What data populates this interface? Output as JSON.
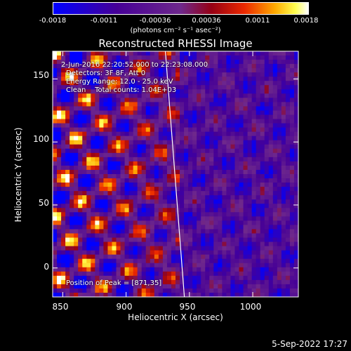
{
  "colorbar": {
    "ticks": [
      "-0.0018",
      "-0.0011",
      "-0.00036",
      "0.00036",
      "0.0011",
      "0.0018"
    ],
    "units": "(photons cm⁻² s⁻¹ asec⁻²)"
  },
  "stamp": "5-Sep-2022 17:27",
  "annotations": {
    "line1": "2-Jun-2016 22:20:52.000 to 22:23:08.000",
    "line2": "Detectors: 3F 8F, Att 0",
    "line3": "Energy Range: 12.0 - 25.0 keV",
    "line4": "Clean    Total counts: 1.04E+03",
    "peak": "Position of Peak = [871,35]"
  },
  "chart_data": {
    "type": "heatmap",
    "title": "Reconstructed RHESSI Image",
    "xlabel": "Heliocentric X (arcsec)",
    "ylabel": "Heliocentric Y (arcsec)",
    "xlim": [
      842,
      1036
    ],
    "ylim": [
      -23,
      172
    ],
    "xticks": [
      850,
      900,
      950,
      1000
    ],
    "yticks": [
      0,
      50,
      100,
      150
    ],
    "colorbar_range": [
      -0.0018,
      0.0018
    ],
    "limb_line": [
      [
        931,
        172
      ],
      [
        946,
        -23
      ]
    ],
    "peak_position": [
      871,
      35
    ]
  }
}
